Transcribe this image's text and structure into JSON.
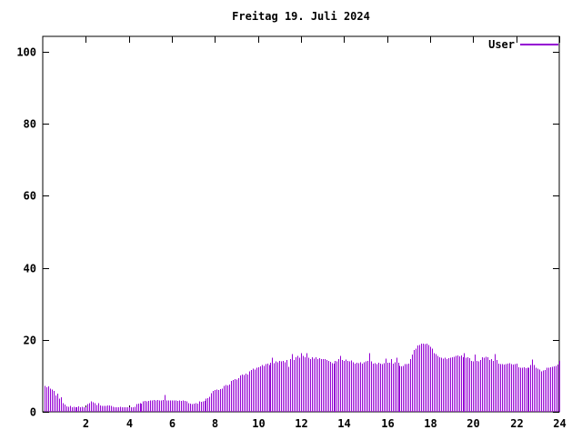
{
  "page": {
    "background_color": "#ffffff",
    "text_color": "#000000"
  },
  "chart_data": {
    "type": "bar",
    "bar_style": "impulses",
    "title": "Freitag 19. Juli 2024",
    "xlabel": "",
    "ylabel": "",
    "xlim": [
      0,
      24
    ],
    "ylim": [
      0,
      104
    ],
    "xticks": [
      2,
      4,
      6,
      8,
      10,
      12,
      14,
      16,
      18,
      20,
      22,
      24
    ],
    "yticks": [
      0,
      20,
      40,
      60,
      80,
      100
    ],
    "grid": false,
    "legend_position": "top-right-inside",
    "x_unit": "hour-of-day",
    "interval_minutes": 5,
    "series": [
      {
        "name": "User",
        "color": "#9400D3",
        "values": [
          7.2,
          6.8,
          7.1,
          6.4,
          6.2,
          5.8,
          4.5,
          5.0,
          3.7,
          4.1,
          2.4,
          2.0,
          1.5,
          1.4,
          1.6,
          1.3,
          1.4,
          1.2,
          1.3,
          1.5,
          1.2,
          1.4,
          1.3,
          1.2,
          2.2,
          2.4,
          2.9,
          2.6,
          2.4,
          1.9,
          2.4,
          1.8,
          1.6,
          1.7,
          1.6,
          1.8,
          1.8,
          1.6,
          1.4,
          1.2,
          1.3,
          1.2,
          1.4,
          1.2,
          1.3,
          1.2,
          1.2,
          1.3,
          1.3,
          1.3,
          1.4,
          2.2,
          2.3,
          2.4,
          2.3,
          2.9,
          3.0,
          2.9,
          3.0,
          3.1,
          3.2,
          3.3,
          3.2,
          3.3,
          3.2,
          3.1,
          3.3,
          4.7,
          3.2,
          3.1,
          3.1,
          3.2,
          3.1,
          3.2,
          3.0,
          3.1,
          3.0,
          3.1,
          3.0,
          2.9,
          2.4,
          2.3,
          2.2,
          2.3,
          2.4,
          2.3,
          2.9,
          2.8,
          2.9,
          3.0,
          3.6,
          3.8,
          4.2,
          5.2,
          5.8,
          6.0,
          6.2,
          6.0,
          6.3,
          6.5,
          7.2,
          7.4,
          7.3,
          7.6,
          8.6,
          8.9,
          9.1,
          9.0,
          9.3,
          10.1,
          10.4,
          10.2,
          10.6,
          10.4,
          11.2,
          11.6,
          12.0,
          11.8,
          12.2,
          12.4,
          12.6,
          13.0,
          12.8,
          13.2,
          13.4,
          13.0,
          13.6,
          15.0,
          13.5,
          14.0,
          13.8,
          14.2,
          14.0,
          14.2,
          13.8,
          14.4,
          12.5,
          14.6,
          16.0,
          14.4,
          15.2,
          15.5,
          15.0,
          16.3,
          15.5,
          15.2,
          16.3,
          15.0,
          14.6,
          15.1,
          14.8,
          15.1,
          14.6,
          14.9,
          14.6,
          14.7,
          14.6,
          14.4,
          14.2,
          13.9,
          13.5,
          13.4,
          14.2,
          14.0,
          14.6,
          15.5,
          14.4,
          14.2,
          14.5,
          14.2,
          14.0,
          14.3,
          13.8,
          13.4,
          13.6,
          13.5,
          13.8,
          13.4,
          13.8,
          14.0,
          14.2,
          16.3,
          14.0,
          13.4,
          13.5,
          13.3,
          13.6,
          13.4,
          13.2,
          13.5,
          14.8,
          13.6,
          13.6,
          14.6,
          13.4,
          13.8,
          15.0,
          13.6,
          12.7,
          12.6,
          12.8,
          13.3,
          13.2,
          13.4,
          14.6,
          15.9,
          17.2,
          17.6,
          18.4,
          18.6,
          18.9,
          19.0,
          18.8,
          19.0,
          18.5,
          18.0,
          17.5,
          16.3,
          16.0,
          15.5,
          15.2,
          15.0,
          14.8,
          15.0,
          14.7,
          14.9,
          15.0,
          15.1,
          15.3,
          15.5,
          15.7,
          15.4,
          15.6,
          15.2,
          16.3,
          15.0,
          15.2,
          14.9,
          14.2,
          14.0,
          15.9,
          14.2,
          14.0,
          14.4,
          15.2,
          15.0,
          15.3,
          15.1,
          14.4,
          14.6,
          14.2,
          16.0,
          14.4,
          13.4,
          13.2,
          13.3,
          13.1,
          13.2,
          13.4,
          13.5,
          13.3,
          13.1,
          13.2,
          13.4,
          12.4,
          12.3,
          12.2,
          12.4,
          12.1,
          12.3,
          12.2,
          13.0,
          14.5,
          13.0,
          12.2,
          12.0,
          11.8,
          11.3,
          11.5,
          11.6,
          12.2,
          12.3,
          12.4,
          12.5,
          12.6,
          12.8,
          13.1,
          14.2
        ]
      }
    ]
  }
}
